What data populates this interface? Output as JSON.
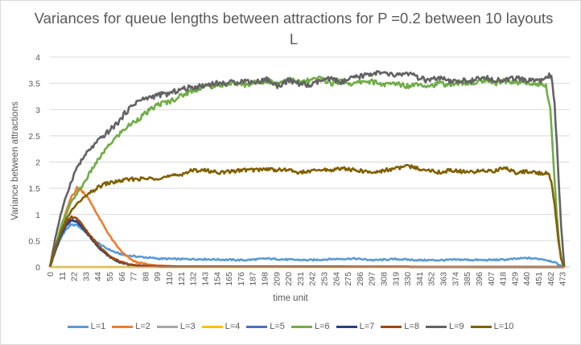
{
  "chart_data": {
    "type": "line",
    "title": "Variances for queue lengths between attractions for P =0.2 between 10 layouts L",
    "xlabel": "time unit",
    "ylabel": "Variance between attractions",
    "xlim": [
      0,
      480
    ],
    "ylim": [
      0,
      4
    ],
    "y_ticks": [
      "0",
      "0.5",
      "1",
      "1.5",
      "2",
      "2.5",
      "3",
      "3.5",
      "4"
    ],
    "x_ticks": [
      "0",
      "11",
      "22",
      "33",
      "44",
      "55",
      "66",
      "77",
      "88",
      "99",
      "110",
      "121",
      "132",
      "143",
      "154",
      "165",
      "176",
      "187",
      "198",
      "209",
      "220",
      "231",
      "242",
      "253",
      "264",
      "275",
      "286",
      "297",
      "308",
      "319",
      "330",
      "341",
      "352",
      "363",
      "374",
      "385",
      "396",
      "407",
      "418",
      "429",
      "440",
      "451",
      "462",
      "473"
    ],
    "grid": "horizontal",
    "legend_position": "bottom",
    "series": [
      {
        "name": "L=1",
        "color": "#5b9bd5",
        "x": [
          0,
          5,
          10,
          15,
          20,
          25,
          30,
          35,
          40,
          50,
          60,
          70,
          80,
          90,
          100,
          120,
          140,
          160,
          180,
          200,
          220,
          240,
          260,
          280,
          300,
          320,
          340,
          360,
          380,
          400,
          420,
          440,
          455,
          465,
          470,
          475
        ],
        "y": [
          0,
          0.3,
          0.55,
          0.72,
          0.8,
          0.8,
          0.72,
          0.62,
          0.52,
          0.38,
          0.28,
          0.22,
          0.2,
          0.18,
          0.16,
          0.15,
          0.15,
          0.14,
          0.13,
          0.16,
          0.14,
          0.13,
          0.15,
          0.16,
          0.13,
          0.15,
          0.13,
          0.13,
          0.14,
          0.13,
          0.14,
          0.17,
          0.15,
          0.1,
          0.04,
          0
        ]
      },
      {
        "name": "L=2",
        "color": "#ed7d31",
        "x": [
          0,
          5,
          10,
          15,
          20,
          25,
          30,
          35,
          40,
          45,
          50,
          55,
          60,
          65,
          70,
          75,
          80,
          90,
          100,
          110,
          120,
          475
        ],
        "y": [
          0,
          0.35,
          0.75,
          1.05,
          1.35,
          1.5,
          1.45,
          1.32,
          1.15,
          0.95,
          0.78,
          0.6,
          0.45,
          0.32,
          0.22,
          0.14,
          0.09,
          0.05,
          0.03,
          0.02,
          0.01,
          0
        ]
      },
      {
        "name": "L=3",
        "color": "#a5a5a5",
        "x": [
          0,
          475
        ],
        "y": [
          0,
          0
        ]
      },
      {
        "name": "L=4",
        "color": "#ffc000",
        "x": [
          0,
          475
        ],
        "y": [
          0,
          0
        ]
      },
      {
        "name": "L=5",
        "color": "#4472c4",
        "x": [
          0,
          5,
          10,
          15,
          20,
          25,
          30,
          35,
          40,
          45,
          50,
          55,
          60,
          65,
          70,
          80,
          90,
          100,
          475
        ],
        "y": [
          0,
          0.3,
          0.58,
          0.78,
          0.88,
          0.85,
          0.74,
          0.62,
          0.5,
          0.38,
          0.28,
          0.2,
          0.14,
          0.09,
          0.06,
          0.03,
          0.02,
          0.01,
          0
        ]
      },
      {
        "name": "L=6",
        "color": "#70ad47",
        "x": [
          0,
          10,
          20,
          30,
          40,
          50,
          60,
          70,
          80,
          90,
          100,
          110,
          120,
          130,
          140,
          150,
          160,
          170,
          180,
          190,
          200,
          210,
          220,
          230,
          240,
          250,
          260,
          270,
          280,
          290,
          300,
          310,
          320,
          330,
          340,
          350,
          360,
          370,
          380,
          390,
          400,
          410,
          420,
          430,
          440,
          450,
          458,
          462,
          465,
          468,
          471,
          474
        ],
        "y": [
          0,
          0.75,
          1.25,
          1.55,
          1.9,
          2.2,
          2.45,
          2.65,
          2.8,
          2.95,
          3.1,
          3.15,
          3.25,
          3.35,
          3.42,
          3.45,
          3.48,
          3.5,
          3.47,
          3.52,
          3.55,
          3.5,
          3.58,
          3.52,
          3.55,
          3.6,
          3.5,
          3.55,
          3.48,
          3.55,
          3.52,
          3.47,
          3.5,
          3.45,
          3.5,
          3.45,
          3.5,
          3.47,
          3.52,
          3.5,
          3.55,
          3.5,
          3.55,
          3.52,
          3.5,
          3.5,
          3.45,
          3.0,
          2.0,
          1.0,
          0.3,
          0
        ]
      },
      {
        "name": "L=7",
        "color": "#264478",
        "x": [
          0,
          5,
          10,
          15,
          20,
          25,
          30,
          35,
          40,
          45,
          50,
          55,
          60,
          65,
          70,
          80,
          90,
          100,
          475
        ],
        "y": [
          0,
          0.32,
          0.6,
          0.8,
          0.9,
          0.87,
          0.76,
          0.63,
          0.5,
          0.38,
          0.28,
          0.2,
          0.14,
          0.09,
          0.06,
          0.03,
          0.02,
          0.01,
          0
        ]
      },
      {
        "name": "L=8",
        "color": "#9e480e",
        "x": [
          0,
          5,
          10,
          15,
          20,
          25,
          30,
          35,
          40,
          45,
          50,
          55,
          60,
          65,
          70,
          80,
          90,
          100,
          475
        ],
        "y": [
          0,
          0.35,
          0.65,
          0.85,
          0.95,
          0.92,
          0.8,
          0.66,
          0.53,
          0.4,
          0.3,
          0.21,
          0.15,
          0.1,
          0.07,
          0.03,
          0.02,
          0.01,
          0
        ]
      },
      {
        "name": "L=9",
        "color": "#636363",
        "x": [
          0,
          5,
          10,
          15,
          20,
          25,
          30,
          35,
          40,
          45,
          50,
          55,
          60,
          65,
          70,
          75,
          80,
          90,
          100,
          110,
          120,
          130,
          140,
          150,
          160,
          170,
          180,
          190,
          200,
          210,
          220,
          230,
          240,
          250,
          260,
          270,
          280,
          290,
          300,
          310,
          320,
          330,
          340,
          350,
          360,
          370,
          380,
          390,
          400,
          410,
          420,
          430,
          440,
          450,
          455,
          460,
          463,
          466,
          469,
          472,
          475
        ],
        "y": [
          0,
          0.55,
          1.0,
          1.35,
          1.65,
          1.9,
          2.05,
          2.2,
          2.3,
          2.42,
          2.5,
          2.6,
          2.7,
          2.8,
          2.95,
          3.05,
          3.15,
          3.22,
          3.28,
          3.3,
          3.38,
          3.42,
          3.45,
          3.5,
          3.5,
          3.52,
          3.55,
          3.52,
          3.58,
          3.45,
          3.55,
          3.5,
          3.45,
          3.55,
          3.58,
          3.52,
          3.6,
          3.65,
          3.7,
          3.68,
          3.65,
          3.7,
          3.6,
          3.55,
          3.6,
          3.52,
          3.55,
          3.55,
          3.6,
          3.58,
          3.55,
          3.6,
          3.55,
          3.58,
          3.55,
          3.65,
          3.62,
          3.1,
          2.0,
          0.8,
          0
        ]
      },
      {
        "name": "L=10",
        "color": "#806000",
        "x": [
          0,
          5,
          10,
          15,
          20,
          25,
          30,
          35,
          40,
          45,
          50,
          60,
          70,
          80,
          90,
          100,
          110,
          120,
          130,
          140,
          150,
          160,
          170,
          180,
          190,
          200,
          210,
          220,
          230,
          240,
          250,
          260,
          270,
          280,
          290,
          300,
          310,
          320,
          330,
          340,
          350,
          360,
          370,
          380,
          390,
          400,
          410,
          420,
          430,
          440,
          450,
          455,
          460,
          463,
          466,
          469,
          472,
          475
        ],
        "y": [
          0,
          0.35,
          0.65,
          0.9,
          1.08,
          1.2,
          1.3,
          1.38,
          1.45,
          1.52,
          1.58,
          1.62,
          1.66,
          1.68,
          1.68,
          1.7,
          1.72,
          1.76,
          1.83,
          1.85,
          1.82,
          1.8,
          1.83,
          1.85,
          1.85,
          1.87,
          1.85,
          1.85,
          1.8,
          1.82,
          1.85,
          1.85,
          1.88,
          1.85,
          1.82,
          1.8,
          1.85,
          1.88,
          1.92,
          1.88,
          1.85,
          1.8,
          1.85,
          1.82,
          1.8,
          1.85,
          1.82,
          1.9,
          1.8,
          1.82,
          1.8,
          1.78,
          1.8,
          1.6,
          1.2,
          0.6,
          0.15,
          0
        ]
      }
    ]
  }
}
